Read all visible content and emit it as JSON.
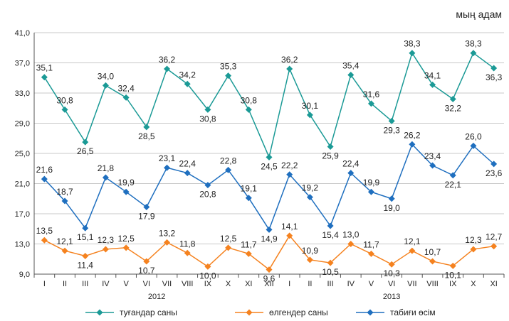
{
  "chart_data": {
    "type": "line",
    "unit_label": "мың адам",
    "categories": [
      "I",
      "II",
      "III",
      "IV",
      "V",
      "VI",
      "VII",
      "VIII",
      "IX",
      "X",
      "XI",
      "XII",
      "I",
      "II",
      "III",
      "IV",
      "V",
      "VI",
      "VII",
      "VIII",
      "IX",
      "X",
      "XI"
    ],
    "year_groups": [
      {
        "label": "2012",
        "from": 0,
        "to": 11
      },
      {
        "label": "2013",
        "from": 12,
        "to": 22
      }
    ],
    "yticks": [
      "9,0",
      "13,0",
      "17,0",
      "21,0",
      "25,0",
      "29,0",
      "33,0",
      "37,0",
      "41,0"
    ],
    "ylim": [
      9,
      41
    ],
    "grid": true,
    "legend_position": "bottom",
    "series": [
      {
        "name": "туғандар саны",
        "color": "#1b9a96",
        "marker": "diamond",
        "values": [
          35.1,
          30.8,
          26.5,
          34.0,
          32.4,
          28.5,
          36.2,
          34.2,
          30.8,
          35.3,
          30.8,
          24.5,
          36.2,
          30.1,
          25.9,
          35.4,
          31.6,
          29.3,
          38.3,
          34.1,
          32.2,
          38.3,
          36.3
        ],
        "labels": [
          "35,1",
          "30,8",
          "26,5",
          "34,0",
          "32,4",
          "28,5",
          "36,2",
          "34,2",
          "30,8",
          "35,3",
          "30,8",
          "24,5",
          "36,2",
          "30,1",
          "25,9",
          "35,4",
          "31,6",
          "29,3",
          "38,3",
          "34,1",
          "32,2",
          "38,3",
          "36,3"
        ]
      },
      {
        "name": "өлгендер саны",
        "color": "#f5821f",
        "marker": "diamond",
        "values": [
          13.5,
          12.1,
          11.4,
          12.3,
          12.5,
          10.7,
          13.2,
          11.8,
          10.0,
          12.5,
          11.7,
          9.6,
          14.1,
          10.9,
          10.5,
          13.0,
          11.7,
          10.3,
          12.1,
          10.7,
          10.1,
          12.3,
          12.7
        ],
        "labels": [
          "13,5",
          "12,1",
          "11,4",
          "12,3",
          "12,5",
          "10,7",
          "13,2",
          "11,8",
          "10,0",
          "12,5",
          "11,7",
          "9,6",
          "14,1",
          "10,9",
          "10,5",
          "13,0",
          "11,7",
          "10,3",
          "12,1",
          "10,7",
          "10,1",
          "12,3",
          "12,7"
        ]
      },
      {
        "name": "табиғи өсім",
        "color": "#1f6fbf",
        "marker": "diamond",
        "values": [
          21.6,
          18.7,
          15.1,
          21.8,
          19.9,
          17.9,
          23.1,
          22.4,
          20.8,
          22.8,
          19.1,
          14.9,
          22.2,
          19.2,
          15.4,
          22.4,
          19.9,
          19.0,
          26.2,
          23.4,
          22.1,
          26.0,
          23.6
        ],
        "labels": [
          "21,6",
          "18,7",
          "15,1",
          "21,8",
          "19,9",
          "17,9",
          "23,1",
          "22,4",
          "20,8",
          "22,8",
          "19,1",
          "14,9",
          "22,2",
          "19,2",
          "15,4",
          "22,4",
          "19,9",
          "19,0",
          "26,2",
          "23,4",
          "22,1",
          "26,0",
          "23,6"
        ]
      }
    ]
  }
}
